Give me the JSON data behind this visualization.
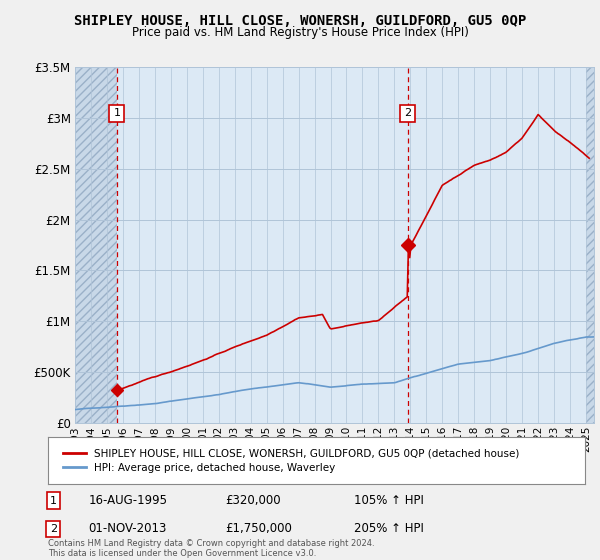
{
  "title": "SHIPLEY HOUSE, HILL CLOSE, WONERSH, GUILDFORD, GU5 0QP",
  "subtitle": "Price paid vs. HM Land Registry's House Price Index (HPI)",
  "bg_color": "#f0f0f0",
  "plot_bg_color": "#dce9f5",
  "hatch_bg_color": "#c8d8e8",
  "grid_color": "#b0c4d8",
  "house_color": "#cc0000",
  "hpi_color": "#6699cc",
  "annotation_color": "#cc0000",
  "ylim": [
    0,
    3500000
  ],
  "yticks": [
    0,
    500000,
    1000000,
    1500000,
    2000000,
    2500000,
    3000000,
    3500000
  ],
  "ytick_labels": [
    "£0",
    "£500K",
    "£1M",
    "£1.5M",
    "£2M",
    "£2.5M",
    "£3M",
    "£3.5M"
  ],
  "xlim_start": 1993.0,
  "xlim_end": 2025.5,
  "xticks": [
    1993,
    1994,
    1995,
    1996,
    1997,
    1998,
    1999,
    2000,
    2001,
    2002,
    2003,
    2004,
    2005,
    2006,
    2007,
    2008,
    2009,
    2010,
    2011,
    2012,
    2013,
    2014,
    2015,
    2016,
    2017,
    2018,
    2019,
    2020,
    2021,
    2022,
    2023,
    2024,
    2025
  ],
  "point1_x": 1995.62,
  "point1_y": 320000,
  "point1_label": "1",
  "point1_date": "16-AUG-1995",
  "point1_price": "£320,000",
  "point1_hpi": "105% ↑ HPI",
  "point2_x": 2013.83,
  "point2_y": 1750000,
  "point2_label": "2",
  "point2_date": "01-NOV-2013",
  "point2_price": "£1,750,000",
  "point2_hpi": "205% ↑ HPI",
  "legend_house": "SHIPLEY HOUSE, HILL CLOSE, WONERSH, GUILDFORD, GU5 0QP (detached house)",
  "legend_hpi": "HPI: Average price, detached house, Waverley",
  "footnote": "Contains HM Land Registry data © Crown copyright and database right 2024.\nThis data is licensed under the Open Government Licence v3.0.",
  "hatch_end_x": 1995.62
}
